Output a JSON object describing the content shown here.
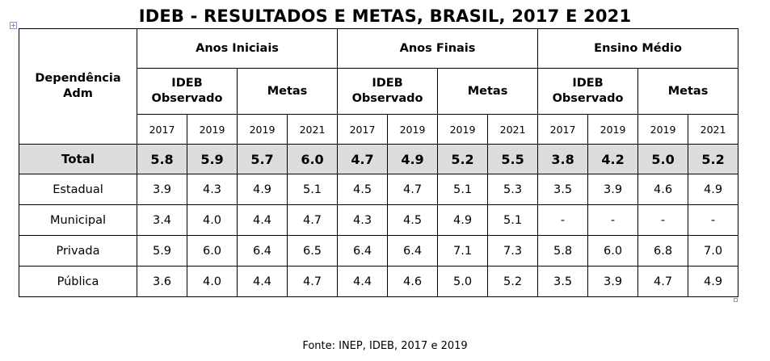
{
  "title": "IDEB - RESULTADOS E METAS, BRASIL, 2017 E 2021",
  "table": {
    "row_header": "Dependência\nAdm",
    "groups": [
      "Anos Iniciais",
      "Anos Finais",
      "Ensino Médio"
    ],
    "sub_observed": "IDEB\nObservado",
    "sub_goals": "Metas",
    "years": [
      "2017",
      "2019",
      "2019",
      "2021",
      "2017",
      "2019",
      "2019",
      "2021",
      "2017",
      "2019",
      "2019",
      "2021"
    ],
    "rows": [
      {
        "label": "Total",
        "values": [
          "5.8",
          "5.9",
          "5.7",
          "6.0",
          "4.7",
          "4.9",
          "5.2",
          "5.5",
          "3.8",
          "4.2",
          "5.0",
          "5.2"
        ]
      },
      {
        "label": "Estadual",
        "values": [
          "3.9",
          "4.3",
          "4.9",
          "5.1",
          "4.5",
          "4.7",
          "5.1",
          "5.3",
          "3.5",
          "3.9",
          "4.6",
          "4.9"
        ]
      },
      {
        "label": "Municipal",
        "values": [
          "3.4",
          "4.0",
          "4.4",
          "4.7",
          "4.3",
          "4.5",
          "4.9",
          "5.1",
          "-",
          "-",
          "-",
          "-"
        ]
      },
      {
        "label": "Privada",
        "values": [
          "5.9",
          "6.0",
          "6.4",
          "6.5",
          "6.4",
          "6.4",
          "7.1",
          "7.3",
          "5.8",
          "6.0",
          "6.8",
          "7.0"
        ]
      },
      {
        "label": "Pública",
        "values": [
          "3.6",
          "4.0",
          "4.4",
          "4.7",
          "4.4",
          "4.6",
          "5.0",
          "5.2",
          "3.5",
          "3.9",
          "4.7",
          "4.9"
        ]
      }
    ]
  },
  "source": "Fonte: INEP, IDEB, 2017 e 2019"
}
